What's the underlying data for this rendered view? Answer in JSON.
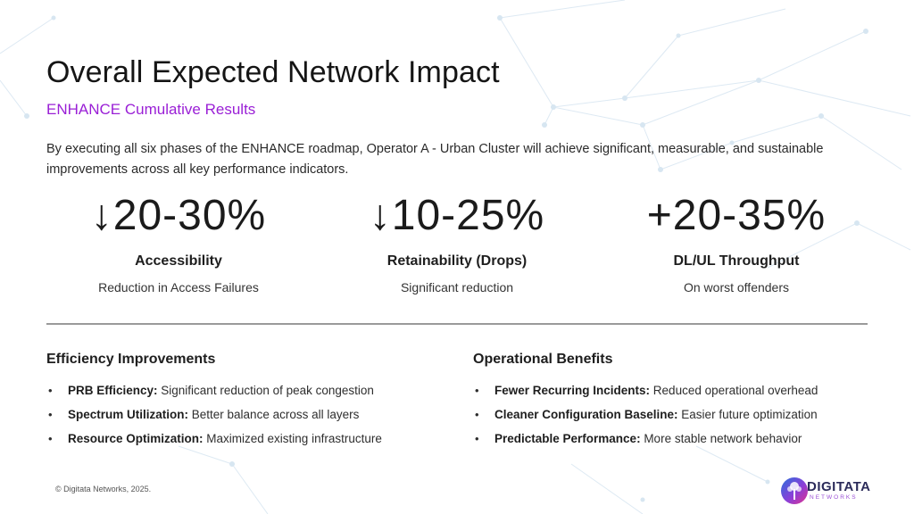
{
  "slide": {
    "title": "Overall Expected Network Impact",
    "subtitle": "ENHANCE Cumulative Results",
    "intro": "By executing all six phases of the ENHANCE roadmap, Operator A - Urban Cluster will achieve significant, measurable, and sustainable improvements across all key performance indicators."
  },
  "metrics": [
    {
      "value": "↓20-30%",
      "label": "Accessibility",
      "desc": "Reduction in Access Failures"
    },
    {
      "value": "↓10-25%",
      "label": "Retainability (Drops)",
      "desc": "Significant reduction"
    },
    {
      "value": "+20-35%",
      "label": "DL/UL Throughput",
      "desc": "On worst offenders"
    }
  ],
  "efficiency": {
    "heading": "Efficiency Improvements",
    "items": [
      {
        "bullet": "•",
        "term": "PRB Efficiency:",
        "text": " Significant reduction of peak congestion"
      },
      {
        "bullet": "•",
        "term": "Spectrum Utilization:",
        "text": " Better balance across all layers"
      },
      {
        "bullet": "•",
        "term": "Resource Optimization:",
        "text": " Maximized existing infrastructure"
      }
    ]
  },
  "operational": {
    "heading": "Operational Benefits",
    "items": [
      {
        "bullet": "•",
        "term": "Fewer Recurring Incidents:",
        "text": " Reduced operational overhead"
      },
      {
        "bullet": "•",
        "term": "Cleaner Configuration Baseline:",
        "text": " Easier future optimization"
      },
      {
        "bullet": "•",
        "term": "Predictable Performance:",
        "text": " More stable network behavior"
      }
    ]
  },
  "footer": {
    "copyright": "© Digitata Networks, 2025."
  },
  "logo": {
    "name": "DIGITATA",
    "sub": "NETWORKS",
    "icon": "tree-logo-icon"
  },
  "colors": {
    "accent": "#9a1fd6",
    "divider": "#9a9a9a",
    "network_lines": "#dce8f2"
  }
}
